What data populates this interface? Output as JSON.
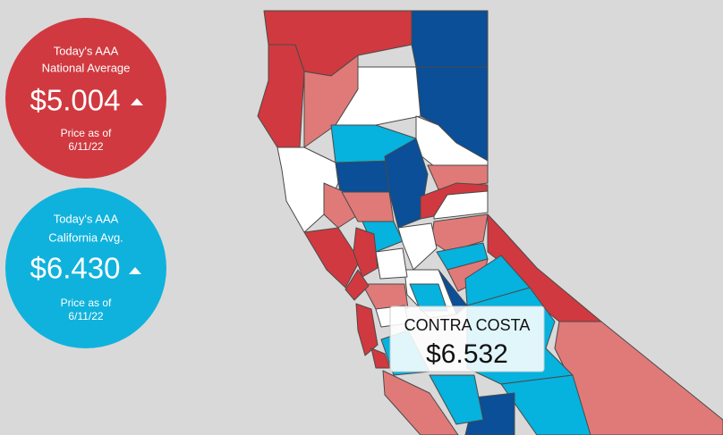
{
  "national": {
    "heading": [
      "Today's AAA",
      "National Average"
    ],
    "price": "$5.004",
    "note": [
      "Price as of",
      "6/11/22"
    ]
  },
  "california": {
    "heading": [
      "Today's AAA",
      "California Avg."
    ],
    "price": "$6.430",
    "note": [
      "Price as of",
      "6/11/22"
    ]
  },
  "tooltip": {
    "county": "CONTRA COSTA",
    "price": "$6.532"
  }
}
